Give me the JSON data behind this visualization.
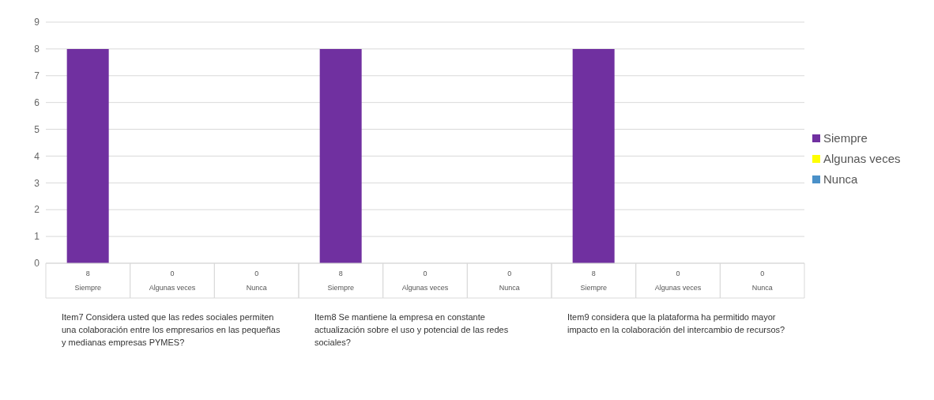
{
  "chart_data": {
    "type": "bar",
    "stacked": true,
    "categories": [
      "Siempre",
      "Algunas veces",
      "Nunca",
      "Siempre",
      "Algunas veces",
      "Nunca",
      "Siempre",
      "Algunas veces",
      "Nunca"
    ],
    "series": [
      {
        "name": "Siempre",
        "color": "#7030a0",
        "values": [
          8,
          null,
          null,
          8,
          null,
          null,
          8,
          null,
          null
        ]
      },
      {
        "name": "Algunas veces",
        "color": "#ffff00",
        "values": [
          null,
          0,
          null,
          null,
          0,
          null,
          null,
          0,
          null
        ]
      },
      {
        "name": "Nunca",
        "color": "#4a90c8",
        "values": [
          null,
          null,
          0,
          null,
          null,
          0,
          null,
          null,
          0
        ]
      }
    ],
    "ylim": [
      0,
      9
    ],
    "yticks": [
      0,
      1,
      2,
      3,
      4,
      5,
      6,
      7,
      8,
      9
    ],
    "grid": "y",
    "legend": "right",
    "data_labels": true,
    "annotations": [
      "Item7 Considera usted que las redes sociales permiten una colaboración entre los empresarios en las pequeñas y medianas empresas PYMES?",
      "Item8 Se mantiene la empresa en constante actualización sobre el uso y potencial de las redes sociales?",
      "Item9 considera que la plataforma ha permitido mayor impacto en la colaboración del intercambio de recursos?"
    ]
  }
}
